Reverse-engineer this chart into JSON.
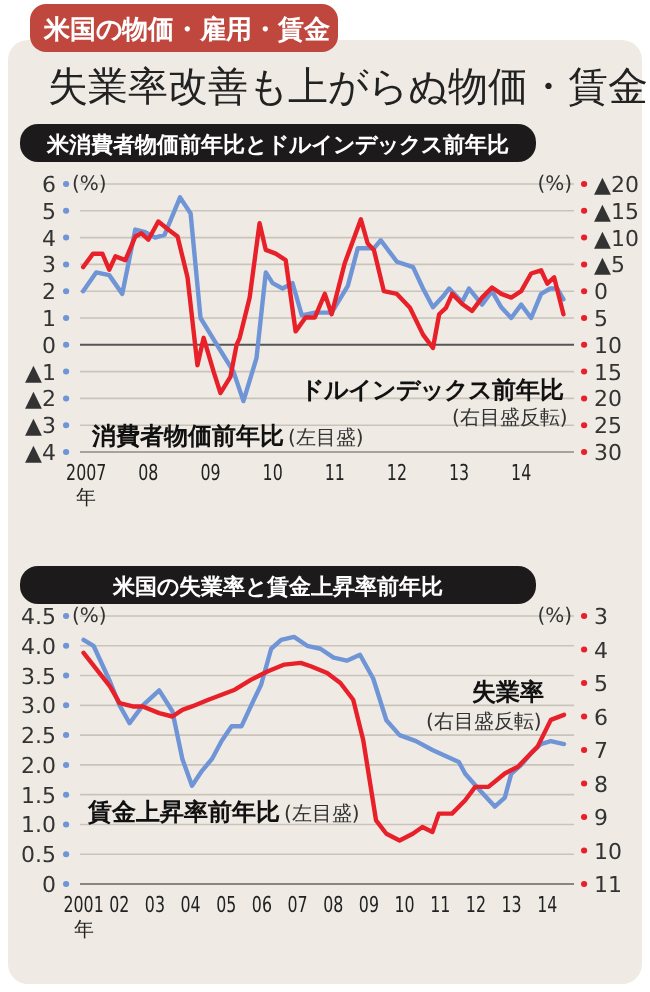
{
  "chart_data": [
    {
      "type": "other",
      "title": "失業率改善も上がらぬ物価・賃金",
      "subtitle": "米国の物価・雇用・賃金"
    },
    {
      "type": "line",
      "title": "米消費者物価前年比とドルインデックス前年比",
      "xlabel": "年",
      "ylabel": "(%)",
      "y2label": "(%)",
      "grid": "y",
      "xlim": [
        2006.9,
        2014.85
      ],
      "xticks": [
        {
          "value": 2007,
          "label": "2007"
        },
        {
          "value": 2008,
          "label": "08"
        },
        {
          "value": 2009,
          "label": "09"
        },
        {
          "value": 2010,
          "label": "10"
        },
        {
          "value": 2011,
          "label": "11"
        },
        {
          "value": 2012,
          "label": "12"
        },
        {
          "value": 2013,
          "label": "13"
        },
        {
          "value": 2014,
          "label": "14"
        }
      ],
      "ylim": [
        -4,
        6
      ],
      "yticks": [
        {
          "value": -4,
          "label": "▲4"
        },
        {
          "value": -3,
          "label": "▲3"
        },
        {
          "value": -2,
          "label": "▲2"
        },
        {
          "value": -1,
          "label": "▲1"
        },
        0,
        1,
        2,
        3,
        4,
        5,
        6
      ],
      "y2lim": [
        30,
        -20
      ],
      "y2ticks": [
        30,
        25,
        20,
        15,
        10,
        5,
        0,
        {
          "value": -5,
          "label": "▲5"
        },
        {
          "value": -10,
          "label": "▲10"
        },
        {
          "value": -15,
          "label": "▲15"
        },
        {
          "value": -20,
          "label": "▲20"
        }
      ],
      "annotations": [
        "(左目盛)",
        "(右目盛反転)"
      ],
      "series": [
        {
          "name": "消費者物価前年比",
          "color": "#6f95d6",
          "x": [
            2006.95,
            2007.16,
            2007.37,
            2007.58,
            2007.79,
            2007.95,
            2008.11,
            2008.26,
            2008.51,
            2008.68,
            2008.84,
            2009.05,
            2009.21,
            2009.37,
            2009.53,
            2009.74,
            2009.89,
            2010.0,
            2010.16,
            2010.32,
            2010.47,
            2010.68,
            2010.95,
            2011.21,
            2011.37,
            2011.63,
            2011.74,
            2012.0,
            2012.26,
            2012.42,
            2012.58,
            2012.74,
            2012.84,
            2013.05,
            2013.16,
            2013.37,
            2013.53,
            2013.68,
            2013.84,
            2014.0,
            2014.16,
            2014.32,
            2014.47,
            2014.58,
            2014.68
          ],
          "values": [
            2.0,
            2.7,
            2.6,
            1.9,
            4.3,
            4.2,
            4.0,
            4.1,
            5.5,
            4.9,
            1.0,
            0.2,
            -0.4,
            -1.0,
            -2.1,
            -0.5,
            2.7,
            2.3,
            2.1,
            2.3,
            1.1,
            1.2,
            1.2,
            2.2,
            3.6,
            3.6,
            3.9,
            3.1,
            2.9,
            2.1,
            1.4,
            1.8,
            2.1,
            1.6,
            2.1,
            1.5,
            2.0,
            1.4,
            1.0,
            1.5,
            1.0,
            1.9,
            2.1,
            2.1,
            1.7
          ]
        },
        {
          "name": "ドルインデックス前年比",
          "color": "#e8202a",
          "axis": "y2",
          "x": [
            2006.95,
            2007.11,
            2007.26,
            2007.37,
            2007.47,
            2007.63,
            2007.79,
            2007.89,
            2008.0,
            2008.16,
            2008.32,
            2008.47,
            2008.63,
            2008.79,
            2008.89,
            2009.05,
            2009.16,
            2009.32,
            2009.42,
            2009.47,
            2009.63,
            2009.79,
            2009.89,
            2010.05,
            2010.21,
            2010.37,
            2010.53,
            2010.68,
            2010.84,
            2010.95,
            2011.16,
            2011.42,
            2011.53,
            2011.63,
            2011.79,
            2012.0,
            2012.21,
            2012.42,
            2012.58,
            2012.68,
            2012.79,
            2012.89,
            2013.05,
            2013.21,
            2013.37,
            2013.53,
            2013.68,
            2013.84,
            2014.0,
            2014.16,
            2014.32,
            2014.42,
            2014.53,
            2014.68
          ],
          "values": [
            -4.5,
            -7,
            -7,
            -4,
            -6.5,
            -5.8,
            -10.2,
            -10.8,
            -9.6,
            -13,
            -11.5,
            -10.2,
            -2.6,
            13.8,
            8.7,
            15,
            19,
            16,
            10,
            8.7,
            1.2,
            -12.7,
            -7.7,
            -7,
            -5.8,
            7.5,
            4.9,
            4.9,
            0.5,
            4.3,
            -5.2,
            -13.4,
            -8.9,
            -7.7,
            0,
            0.5,
            3.1,
            8.1,
            10.6,
            4.3,
            3.1,
            0.5,
            2.4,
            3.7,
            1.2,
            -0.7,
            0.5,
            1.2,
            0,
            -3.3,
            -3.9,
            -1.4,
            -2.6,
            4.3
          ]
        }
      ]
    },
    {
      "type": "line",
      "title": "米国の失業率と賃金上昇率前年比",
      "xlabel": "年",
      "ylabel": "(%)",
      "y2label": "(%)",
      "grid": "y",
      "xlim": [
        2000.9,
        2014.75
      ],
      "xticks": [
        {
          "value": 2001,
          "label": "2001"
        },
        {
          "value": 2002,
          "label": "02"
        },
        {
          "value": 2003,
          "label": "03"
        },
        {
          "value": 2004,
          "label": "04"
        },
        {
          "value": 2005,
          "label": "05"
        },
        {
          "value": 2006,
          "label": "06"
        },
        {
          "value": 2007,
          "label": "07"
        },
        {
          "value": 2008,
          "label": "08"
        },
        {
          "value": 2009,
          "label": "09"
        },
        {
          "value": 2010,
          "label": "10"
        },
        {
          "value": 2011,
          "label": "11"
        },
        {
          "value": 2012,
          "label": "12"
        },
        {
          "value": 2013,
          "label": "13"
        },
        {
          "value": 2014,
          "label": "14"
        }
      ],
      "ylim": [
        0,
        4.5
      ],
      "yticks": [
        0,
        0.5,
        {
          "value": 1,
          "label": "1.0"
        },
        1.5,
        {
          "value": 2,
          "label": "2.0"
        },
        2.5,
        {
          "value": 3,
          "label": "3.0"
        },
        3.5,
        {
          "value": 4,
          "label": "4.0"
        },
        4.5
      ],
      "y2lim": [
        11,
        3
      ],
      "y2ticks": [
        11,
        10,
        9,
        8,
        7,
        6,
        5,
        4,
        3
      ],
      "annotations": [
        "(左目盛)",
        "(右目盛反転)"
      ],
      "series": [
        {
          "name": "賃金上昇率前年比",
          "color": "#6f95d6",
          "x": [
            2001.0,
            2001.28,
            2001.74,
            2002.01,
            2002.29,
            2002.66,
            2003.12,
            2003.49,
            2003.77,
            2004.04,
            2004.32,
            2004.6,
            2004.87,
            2005.15,
            2005.43,
            2005.7,
            2005.98,
            2006.26,
            2006.54,
            2006.9,
            2007.27,
            2007.64,
            2008.01,
            2008.38,
            2008.75,
            2009.12,
            2009.49,
            2009.86,
            2010.32,
            2010.78,
            2011.15,
            2011.52,
            2011.7,
            2012.07,
            2012.53,
            2012.81,
            2012.99,
            2013.27,
            2013.55,
            2013.82,
            2014.1,
            2014.47
          ],
          "values": [
            4.1,
            4.0,
            3.4,
            3.0,
            2.7,
            3.0,
            3.25,
            2.9,
            2.1,
            1.65,
            1.9,
            2.1,
            2.4,
            2.65,
            2.65,
            3.0,
            3.35,
            3.95,
            4.1,
            4.15,
            4.0,
            3.95,
            3.8,
            3.75,
            3.85,
            3.45,
            2.75,
            2.5,
            2.4,
            2.25,
            2.15,
            2.05,
            1.85,
            1.6,
            1.3,
            1.45,
            1.85,
            2.0,
            2.2,
            2.35,
            2.4,
            2.35
          ]
        },
        {
          "name": "失業率",
          "color": "#e8202a",
          "axis": "y2",
          "x": [
            2001.0,
            2001.37,
            2001.74,
            2002.01,
            2002.38,
            2002.66,
            2003.12,
            2003.49,
            2003.77,
            2004.04,
            2004.5,
            2004.87,
            2005.24,
            2005.7,
            2006.17,
            2006.63,
            2007.09,
            2007.37,
            2007.83,
            2008.2,
            2008.56,
            2008.84,
            2009.2,
            2009.49,
            2009.86,
            2010.23,
            2010.5,
            2010.78,
            2010.96,
            2011.33,
            2011.7,
            2011.98,
            2012.35,
            2012.81,
            2013.18,
            2013.45,
            2013.73,
            2014.1,
            2014.47
          ],
          "values": [
            4.1,
            4.6,
            5.1,
            5.6,
            5.7,
            5.7,
            5.9,
            6.0,
            5.8,
            5.7,
            5.5,
            5.35,
            5.2,
            4.9,
            4.65,
            4.45,
            4.4,
            4.5,
            4.7,
            5.0,
            5.5,
            6.7,
            9.1,
            9.5,
            9.7,
            9.5,
            9.3,
            9.45,
            8.9,
            8.9,
            8.5,
            8.1,
            8.1,
            7.7,
            7.5,
            7.2,
            6.9,
            6.1,
            5.95
          ]
        }
      ]
    }
  ]
}
